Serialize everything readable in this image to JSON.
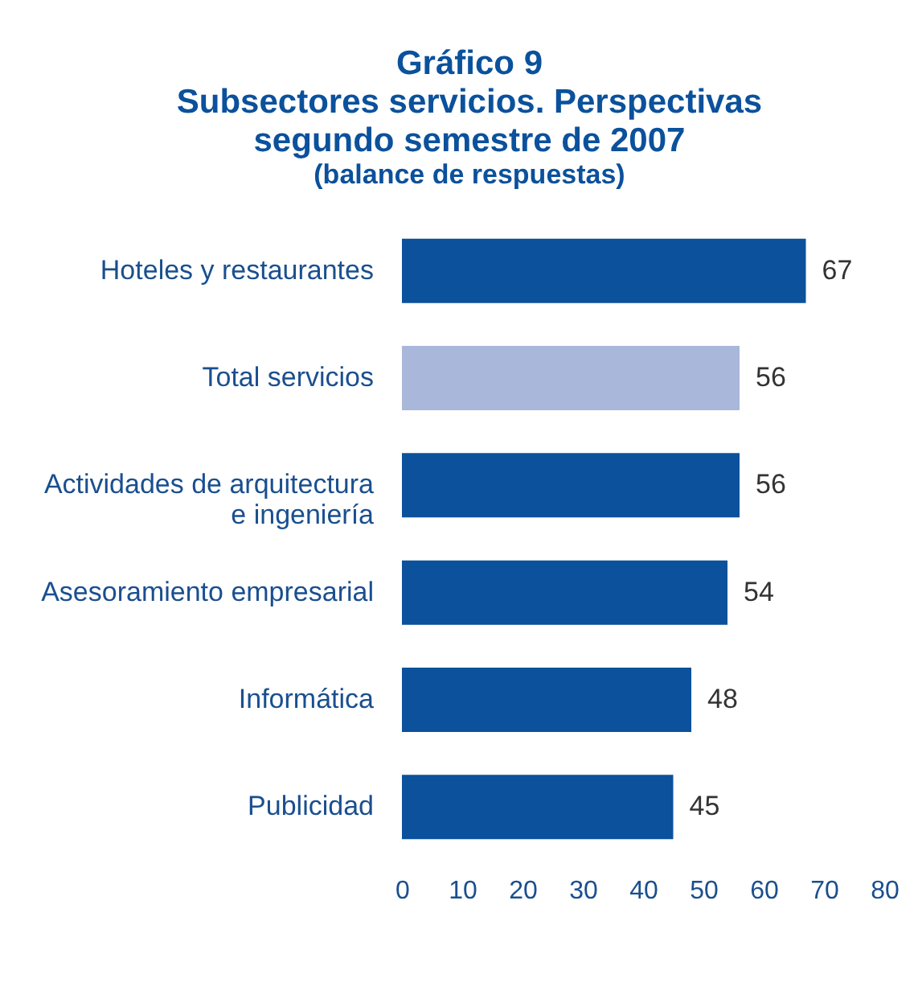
{
  "chart_data": {
    "type": "bar",
    "orientation": "horizontal",
    "title": "Gráfico 9\nSubsectores servicios. Perspectivas\nsegundo semestre de 2007",
    "subtitle": "(balance de respuestas)",
    "categories": [
      "Hoteles y restaurantes",
      "Total servicios",
      "Actividades de arquitectura e ingeniería",
      "Asesoramiento empresarial",
      "Informática",
      "Publicidad"
    ],
    "values": [
      67,
      56,
      56,
      54,
      48,
      45
    ],
    "colors": [
      "#0b519c",
      "#a8b7da",
      "#0b519c",
      "#0b519c",
      "#0b519c",
      "#0b519c"
    ],
    "xlim": [
      0,
      80
    ],
    "xticks": [
      0,
      10,
      20,
      30,
      40,
      50,
      60,
      70,
      80
    ],
    "data_labels": true,
    "grid": false,
    "legend": false
  }
}
